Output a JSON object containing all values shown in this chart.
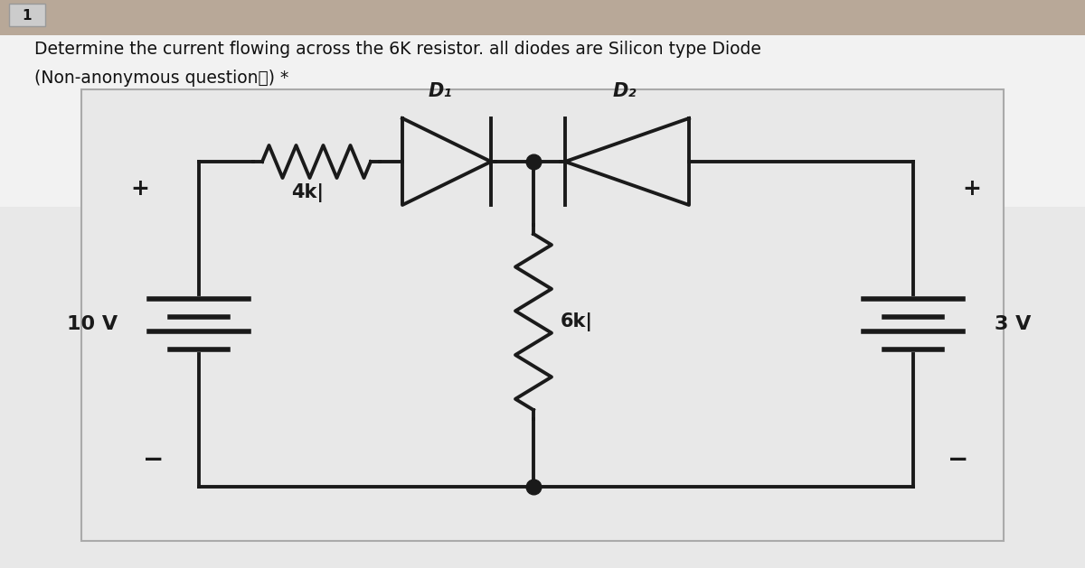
{
  "title_line1": "Determine the current flowing across the 6K resistor. all diodes are Silicon type Diode",
  "title_line2": "(Non-anonymous questionⓘ) *",
  "question_number": "1",
  "page_bg": "#e8e8e8",
  "top_bg": "#f5f5f5",
  "circuit_bg": "#ebebeb",
  "circuit_border": "#aaaaaa",
  "text_color": "#111111",
  "circuit_color": "#1a1a1a",
  "v1_label": "10 V",
  "v2_label": "3 V",
  "r1_label": "4k|",
  "r2_label": "6k|",
  "d1_label": "D₁",
  "d2_label": "D₂"
}
